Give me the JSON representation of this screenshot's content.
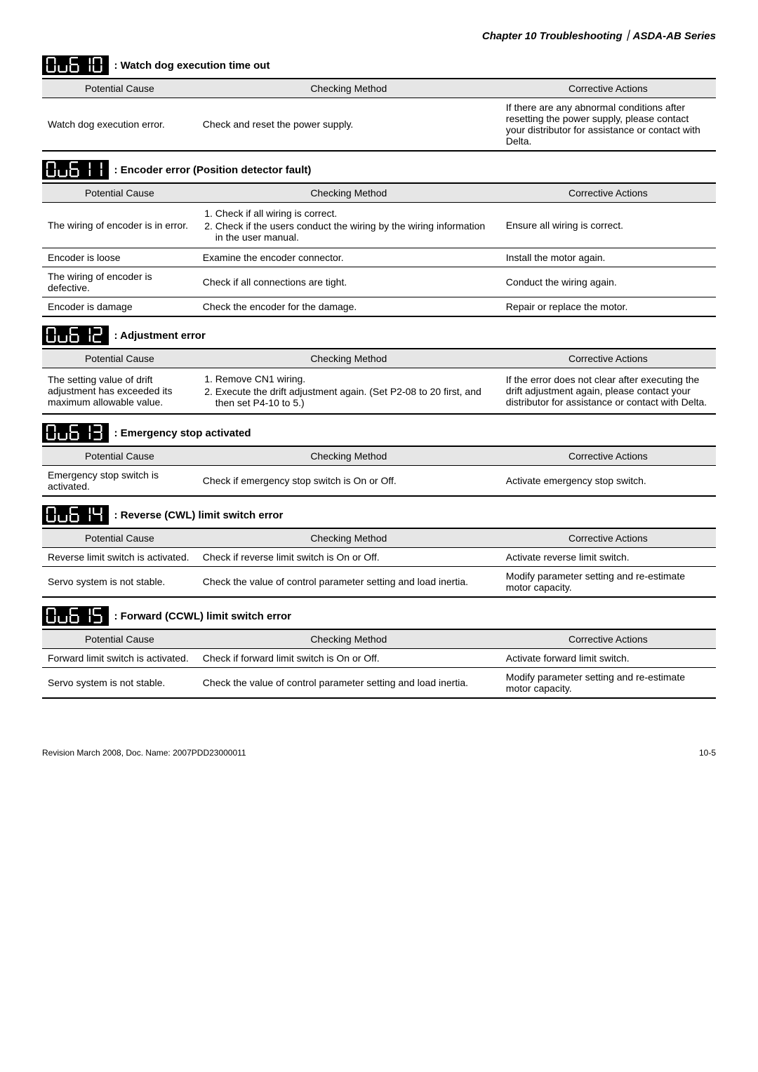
{
  "header": "Chapter 10 Troubleshooting｜ASDA-AB Series",
  "sections": [
    {
      "code": "ALE10",
      "title": ": Watch dog execution time out",
      "rows": [
        {
          "cause": "Watch dog execution error.",
          "method": "Check and reset the power supply.",
          "action": "If there are any abnormal conditions after resetting the power supply, please contact your distributor for assistance or contact with Delta."
        }
      ]
    },
    {
      "code": "ALE11",
      "title": ": Encoder error (Position detector fault)",
      "rows": [
        {
          "cause": "The wiring of encoder is in error.",
          "method_list": [
            "Check if all wiring is correct.",
            "Check if the users conduct the wiring by the wiring information in the user manual."
          ],
          "action": "Ensure all wiring is correct."
        },
        {
          "cause": "Encoder is loose",
          "method": "Examine the encoder connector.",
          "action": "Install the motor again."
        },
        {
          "cause": "The wiring of encoder is defective.",
          "method": "Check if all connections are tight.",
          "action": "Conduct the wiring again."
        },
        {
          "cause": "Encoder is damage",
          "method": "Check the encoder for the damage.",
          "action": "Repair or replace the motor."
        }
      ]
    },
    {
      "code": "ALE12",
      "title": ": Adjustment error",
      "rows": [
        {
          "cause": "The setting value of drift adjustment has exceeded its maximum allowable value.",
          "method_list": [
            "Remove CN1 wiring.",
            "Execute the drift adjustment again. (Set P2-08 to 20 first, and then set P4-10 to 5.)"
          ],
          "action": "If the error does not clear after executing the drift adjustment again, please contact your distributor for assistance or contact with Delta."
        }
      ]
    },
    {
      "code": "ALE13",
      "title": ": Emergency stop activated",
      "rows": [
        {
          "cause": "Emergency stop switch is activated.",
          "method": "Check if emergency stop switch is On or Off.",
          "action": "Activate emergency stop switch."
        }
      ]
    },
    {
      "code": "ALE14",
      "title": ": Reverse (CWL) limit switch error",
      "rows": [
        {
          "cause": "Reverse limit switch is activated.",
          "method": "Check if reverse limit switch is On or Off.",
          "action": "Activate reverse limit switch."
        },
        {
          "cause": "Servo system is not stable.",
          "method": "Check the value of control parameter setting and load inertia.",
          "action": "Modify parameter setting and re-estimate motor capacity."
        }
      ]
    },
    {
      "code": "ALE15",
      "title": ": Forward (CCWL) limit switch error",
      "rows": [
        {
          "cause": "Forward limit switch is activated.",
          "method": "Check if forward limit switch is On or Off.",
          "action": "Activate forward limit switch."
        },
        {
          "cause": "Servo system is not stable.",
          "method": "Check the value of control parameter setting and load inertia.",
          "action": "Modify parameter setting and re-estimate motor capacity."
        }
      ]
    }
  ],
  "table_headers": {
    "cause": "Potential Cause",
    "method": "Checking Method",
    "action": "Corrective Actions"
  },
  "footer_left": "Revision March 2008, Doc. Name: 2007PDD23000011",
  "footer_right": "10-5"
}
